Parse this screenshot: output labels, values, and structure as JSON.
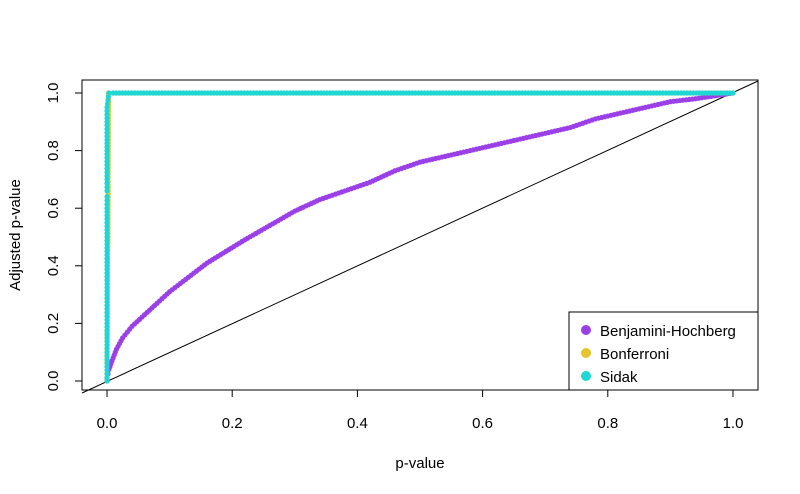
{
  "chart_data": {
    "type": "scatter",
    "title": "",
    "xlabel": "p-value",
    "ylabel": "Adjusted p-value",
    "xlim": [
      0,
      1
    ],
    "ylim": [
      0,
      1
    ],
    "xticks": [
      "0.0",
      "0.2",
      "0.4",
      "0.6",
      "0.8",
      "1.0"
    ],
    "yticks": [
      "0.0",
      "0.2",
      "0.4",
      "0.6",
      "0.8",
      "1.0"
    ],
    "grid": false,
    "reference_line": {
      "from": [
        0,
        0
      ],
      "to": [
        1,
        1
      ],
      "color": "#000000"
    },
    "legend": {
      "position": "bottom-right",
      "entries": [
        "Benjamini-Hochberg",
        "Bonferroni",
        "Sidak"
      ]
    },
    "series": [
      {
        "name": "Benjamini-Hochberg",
        "color": "#9b3fe8",
        "points": [
          [
            0,
            0.01
          ],
          [
            0.003,
            0.04
          ],
          [
            0.008,
            0.07
          ],
          [
            0.015,
            0.11
          ],
          [
            0.025,
            0.15
          ],
          [
            0.04,
            0.19
          ],
          [
            0.06,
            0.23
          ],
          [
            0.08,
            0.27
          ],
          [
            0.1,
            0.31
          ],
          [
            0.13,
            0.36
          ],
          [
            0.16,
            0.41
          ],
          [
            0.19,
            0.45
          ],
          [
            0.22,
            0.49
          ],
          [
            0.26,
            0.54
          ],
          [
            0.3,
            0.59
          ],
          [
            0.34,
            0.63
          ],
          [
            0.38,
            0.66
          ],
          [
            0.42,
            0.69
          ],
          [
            0.46,
            0.73
          ],
          [
            0.5,
            0.76
          ],
          [
            0.54,
            0.78
          ],
          [
            0.58,
            0.8
          ],
          [
            0.62,
            0.82
          ],
          [
            0.66,
            0.84
          ],
          [
            0.7,
            0.86
          ],
          [
            0.74,
            0.88
          ],
          [
            0.78,
            0.91
          ],
          [
            0.82,
            0.93
          ],
          [
            0.86,
            0.95
          ],
          [
            0.9,
            0.97
          ],
          [
            0.94,
            0.98
          ],
          [
            0.97,
            0.99
          ],
          [
            1,
            1
          ]
        ]
      },
      {
        "name": "Bonferroni",
        "color": "#e8c42a",
        "points": [
          [
            0,
            0
          ],
          [
            0,
            0.05
          ],
          [
            0.0005,
            0.2
          ],
          [
            0.001,
            0.43
          ],
          [
            0.0015,
            0.48
          ],
          [
            0.002,
            0.68
          ],
          [
            0.002,
            0.72
          ],
          [
            0.0025,
            1
          ],
          [
            0.01,
            1
          ],
          [
            0.2,
            1
          ],
          [
            0.4,
            1
          ],
          [
            0.6,
            1
          ],
          [
            0.8,
            1
          ],
          [
            1,
            1
          ]
        ]
      },
      {
        "name": "Sidak",
        "color": "#1ed6d6",
        "points": [
          [
            0,
            0
          ],
          [
            0,
            0.05
          ],
          [
            0,
            0.1
          ],
          [
            0,
            0.15
          ],
          [
            0,
            0.2
          ],
          [
            0,
            0.25
          ],
          [
            0,
            0.3
          ],
          [
            0,
            0.35
          ],
          [
            0,
            0.4
          ],
          [
            0,
            0.45
          ],
          [
            0,
            0.5
          ],
          [
            0,
            0.55
          ],
          [
            0,
            0.6
          ],
          [
            0,
            0.64
          ],
          [
            0,
            0.66
          ],
          [
            0,
            0.7
          ],
          [
            0,
            0.75
          ],
          [
            0,
            0.8
          ],
          [
            0,
            0.85
          ],
          [
            0,
            0.9
          ],
          [
            0,
            0.95
          ],
          [
            0.003,
            1
          ],
          [
            0.01,
            1
          ],
          [
            0.2,
            1
          ],
          [
            0.4,
            1
          ],
          [
            0.6,
            1
          ],
          [
            0.8,
            1
          ],
          [
            1,
            1
          ]
        ]
      }
    ]
  }
}
